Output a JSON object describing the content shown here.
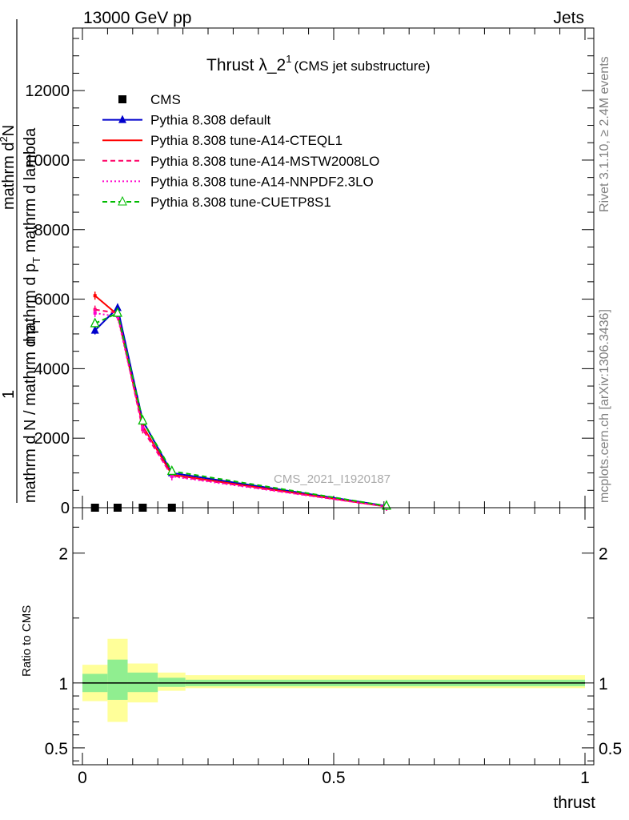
{
  "header": {
    "left": "13000 GeV pp",
    "right": "Jets"
  },
  "side_labels": {
    "rivet": "Rivet 3.1.10, ≥ 2.4M events",
    "mcplots": "mcplots.cern.ch [arXiv:1306.3436]"
  },
  "watermark": "CMS_2021_I1920187",
  "chart_data": [
    {
      "type": "line",
      "panel": "main",
      "title": "Thrust λ_2",
      "title_sup": "1",
      "subtitle": "(CMS jet substructure)",
      "ylabel_numerator": "mathrm d",
      "ylabel_numerator_sup": "2",
      "ylabel_numerator_tail": "N",
      "ylabel_denominator": "mathrm d p",
      "ylabel_denominator_sub": "T",
      "ylabel_denominator_tail": " mathrm d lambda",
      "ylabel_prefix_num": "1",
      "ylabel_prefix_den": "mathrm d N / mathrm d p",
      "ylabel_prefix_den_sub": "T",
      "xlim": [
        0,
        1
      ],
      "ylim": [
        0,
        13800
      ],
      "yticks": [
        0,
        2000,
        4000,
        6000,
        8000,
        10000,
        12000
      ],
      "yticklabels": [
        "0",
        "2000",
        "4000",
        "6000",
        "8000",
        "10000",
        "12000"
      ],
      "legend_position": "top-left",
      "series": [
        {
          "name": "CMS",
          "color": "#000000",
          "style": "marker-square",
          "x": [
            0.025,
            0.07,
            0.12,
            0.178
          ],
          "y": [
            0,
            0,
            0,
            0
          ]
        },
        {
          "name": "Pythia 8.308 default",
          "color": "#0000cc",
          "style": "solid-triangle",
          "x": [
            0.025,
            0.07,
            0.12,
            0.178,
            0.605
          ],
          "y": [
            5100,
            5750,
            2500,
            1000,
            50
          ]
        },
        {
          "name": "Pythia 8.308 tune-A14-CTEQL1",
          "color": "#ff0000",
          "style": "solid",
          "x": [
            0.025,
            0.07,
            0.12,
            0.178,
            0.605
          ],
          "y": [
            6100,
            5550,
            2350,
            950,
            30
          ]
        },
        {
          "name": "Pythia 8.308 tune-A14-MSTW2008LO",
          "color": "#ff0066",
          "style": "dashed",
          "x": [
            0.025,
            0.07,
            0.12,
            0.178,
            0.605
          ],
          "y": [
            5700,
            5600,
            2250,
            920,
            30
          ]
        },
        {
          "name": "Pythia 8.308 tune-A14-NNPDF2.3LO",
          "color": "#ff00cc",
          "style": "dotted",
          "x": [
            0.025,
            0.07,
            0.12,
            0.178,
            0.605
          ],
          "y": [
            5600,
            5500,
            2300,
            900,
            30
          ]
        },
        {
          "name": "Pythia 8.308 tune-CUETP8S1",
          "color": "#00bb00",
          "style": "dashed-open-triangle",
          "x": [
            0.025,
            0.07,
            0.12,
            0.178,
            0.605
          ],
          "y": [
            5300,
            5600,
            2500,
            1050,
            50
          ]
        }
      ]
    },
    {
      "type": "area",
      "panel": "ratio",
      "ylabel": "Ratio to CMS",
      "xlabel": "thrust",
      "xlim": [
        0,
        1
      ],
      "ylim": [
        0.37,
        2.35
      ],
      "xticks": [
        0,
        0.5,
        1
      ],
      "xticklabels": [
        "0",
        "0.5",
        "1"
      ],
      "yticks": [
        0.5,
        1,
        2
      ],
      "yticklabels": [
        "0.5",
        "1",
        "2"
      ],
      "bins": [
        {
          "x0": 0.0,
          "x1": 0.05,
          "stat_lo": 0.93,
          "stat_hi": 1.07,
          "tot_lo": 0.86,
          "tot_hi": 1.14
        },
        {
          "x0": 0.05,
          "x1": 0.09,
          "stat_lo": 0.87,
          "stat_hi": 1.18,
          "tot_lo": 0.7,
          "tot_hi": 1.34
        },
        {
          "x0": 0.09,
          "x1": 0.15,
          "stat_lo": 0.93,
          "stat_hi": 1.08,
          "tot_lo": 0.85,
          "tot_hi": 1.15
        },
        {
          "x0": 0.15,
          "x1": 0.205,
          "stat_lo": 0.97,
          "stat_hi": 1.04,
          "tot_lo": 0.94,
          "tot_hi": 1.08
        },
        {
          "x0": 0.205,
          "x1": 1.0,
          "stat_lo": 0.975,
          "stat_hi": 1.025,
          "tot_lo": 0.96,
          "tot_hi": 1.06
        }
      ],
      "colors": {
        "stat": "#90ee90",
        "total": "#ffff99"
      }
    }
  ]
}
